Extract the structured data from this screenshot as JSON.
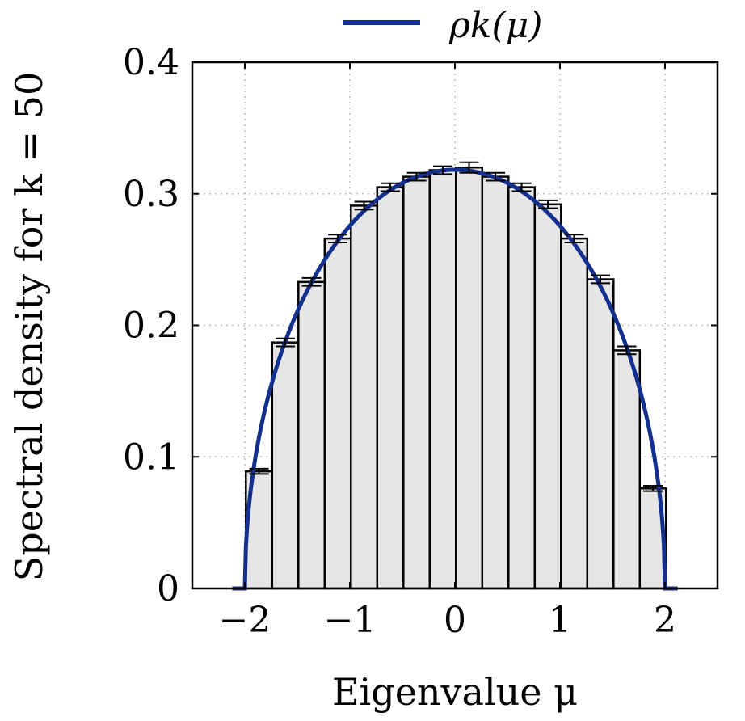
{
  "chart_data": {
    "type": "bar",
    "title": "",
    "xlabel": "Eigenvalue μ",
    "ylabel": "Spectral density for k = 50",
    "xlim": [
      -2.5,
      2.5
    ],
    "ylim": [
      0,
      0.4
    ],
    "xticks": [
      -2,
      -1,
      0,
      1,
      2
    ],
    "xtick_labels": [
      "−2",
      "−1",
      "0",
      "1",
      "2"
    ],
    "yticks": [
      0,
      0.1,
      0.2,
      0.3,
      0.4
    ],
    "ytick_labels": [
      "0",
      "0.1",
      "0.2",
      "0.3",
      "0.4"
    ],
    "grid": true,
    "legend": {
      "position": "top-center",
      "entries": [
        "ρk(μ)"
      ]
    },
    "bins": {
      "edges": [
        -1.99,
        -1.74,
        -1.49,
        -1.24,
        -0.99,
        -0.74,
        -0.49,
        -0.24,
        0.01,
        0.26,
        0.51,
        0.76,
        1.01,
        1.26,
        1.51,
        1.76,
        2.01
      ],
      "values": [
        0.089,
        0.187,
        0.233,
        0.266,
        0.291,
        0.305,
        0.313,
        0.318,
        0.32,
        0.313,
        0.305,
        0.292,
        0.266,
        0.235,
        0.181,
        0.076
      ],
      "errors": [
        0.002,
        0.003,
        0.003,
        0.003,
        0.003,
        0.003,
        0.003,
        0.003,
        0.004,
        0.003,
        0.003,
        0.003,
        0.003,
        0.003,
        0.003,
        0.002
      ]
    },
    "curve": {
      "name": "ρk(μ)",
      "formula": "sqrt(4 - μ^2) / (2π)",
      "support": [
        -2,
        2
      ],
      "color": "#14308f"
    },
    "bar_fill": "#e6e6e6"
  }
}
